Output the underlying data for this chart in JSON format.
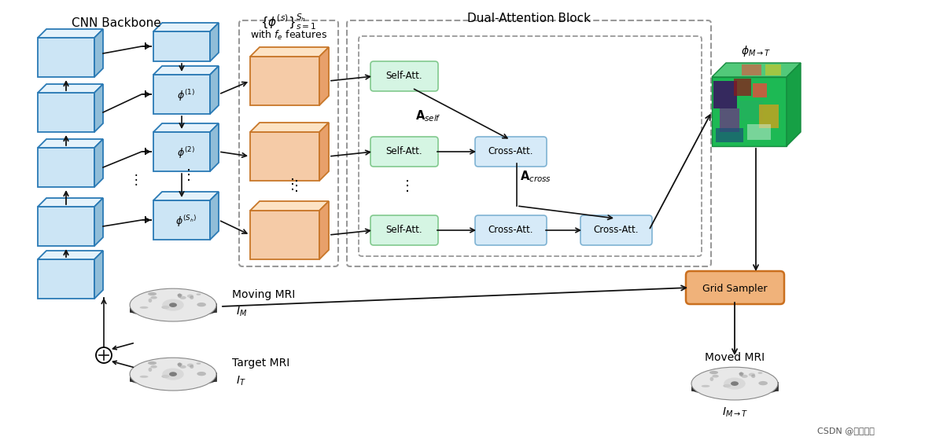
{
  "bg_color": "#ffffff",
  "cnn_label": "CNN Backbone",
  "dual_label": "Dual-Attention Block",
  "blue_face": "#cce5f5",
  "blue_edge": "#2a7ab5",
  "blue_top": "#e4f2fb",
  "blue_right": "#90bdd8",
  "orange_face": "#f5cba7",
  "orange_edge": "#c87729",
  "orange_top": "#fde3c4",
  "orange_right": "#e8a06a",
  "green_box_face": "#d5f5e3",
  "green_box_edge": "#82c98e",
  "lightblue_box_face": "#d6eaf8",
  "lightblue_box_edge": "#7fb3d3",
  "gs_face": "#f0b27a",
  "gs_edge": "#ca6f1e",
  "arrow_color": "#111111",
  "dash_color": "#999999",
  "watermark": "CSDN @蓝海渔夫",
  "figw": 11.9,
  "figh": 5.65,
  "dpi": 100
}
